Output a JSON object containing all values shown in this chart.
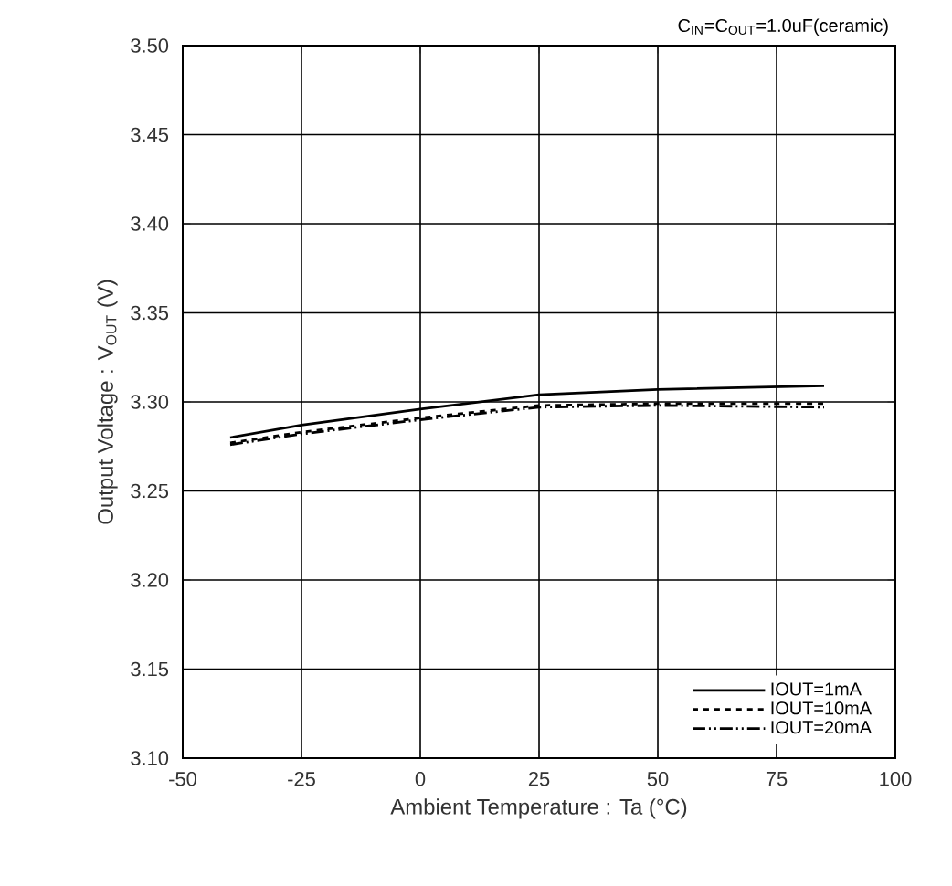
{
  "chart_data": {
    "type": "line",
    "xlabel": "Ambient Temperature : Ta (°C)",
    "ylabel": "Output Voltage : V$_{OUT}$ (V)",
    "annotations": [
      "C$_{IN}$=C$_{OUT}$=1.0uF(ceramic)"
    ],
    "x": [
      -40,
      -25,
      0,
      25,
      50,
      85
    ],
    "series": [
      {
        "name": "IOUT=1mA",
        "color": "#000000",
        "line_style": "solid",
        "values": [
          3.28,
          3.287,
          3.296,
          3.304,
          3.307,
          3.309
        ]
      },
      {
        "name": "IOUT=10mA",
        "color": "#000000",
        "line_style": "dashed",
        "values": [
          3.277,
          3.283,
          3.291,
          3.298,
          3.299,
          3.299
        ]
      },
      {
        "name": "IOUT=20mA",
        "color": "#000000",
        "line_style": "dashdotdot",
        "values": [
          3.276,
          3.282,
          3.29,
          3.297,
          3.298,
          3.297
        ]
      }
    ],
    "xlim": [
      -50,
      100
    ],
    "xticks": [
      -50,
      -25,
      0,
      25,
      50,
      75,
      100
    ],
    "ylim": [
      3.1,
      3.5
    ],
    "yticks": [
      {
        "value": 3.1,
        "label": "3.10"
      },
      {
        "value": 3.15,
        "label": "3.15"
      },
      {
        "value": 3.2,
        "label": "3.20"
      },
      {
        "value": 3.25,
        "label": "3.25"
      },
      {
        "value": 3.3,
        "label": "3.30"
      },
      {
        "value": 3.35,
        "label": "3.35"
      },
      {
        "value": 3.4,
        "label": "3.40"
      },
      {
        "value": 3.45,
        "label": "3.45"
      },
      {
        "value": 3.5,
        "label": "3.50"
      }
    ],
    "grid": true,
    "legend": "bottom right"
  }
}
